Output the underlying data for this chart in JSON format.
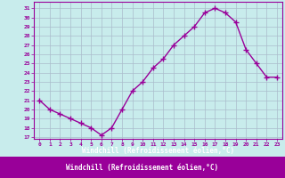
{
  "x": [
    0,
    1,
    2,
    3,
    4,
    5,
    6,
    7,
    8,
    9,
    10,
    11,
    12,
    13,
    14,
    15,
    16,
    17,
    18,
    19,
    20,
    21,
    22,
    23
  ],
  "y": [
    21,
    20,
    19.5,
    19,
    18.5,
    18,
    17.2,
    18,
    20,
    22,
    23,
    24.5,
    25.5,
    27,
    28,
    29,
    30.5,
    31,
    30.5,
    29.5,
    26.5,
    25,
    23.5,
    23.5
  ],
  "line_color": "#990099",
  "marker": "+",
  "marker_size": 4,
  "bg_color": "#c8ecec",
  "grid_color": "#aabccc",
  "xlabel": "Windchill (Refroidissement éolien,°C)",
  "xlabel_color": "#990099",
  "ylabel_ticks": [
    17,
    18,
    19,
    20,
    21,
    22,
    23,
    24,
    25,
    26,
    27,
    28,
    29,
    30,
    31
  ],
  "xtick_labels": [
    "0",
    "1",
    "2",
    "3",
    "4",
    "5",
    "6",
    "7",
    "8",
    "9",
    "10",
    "11",
    "12",
    "13",
    "14",
    "15",
    "16",
    "17",
    "18",
    "19",
    "20",
    "21",
    "22",
    "23"
  ],
  "ylim": [
    16.8,
    31.7
  ],
  "xlim": [
    -0.5,
    23.5
  ],
  "axis_color": "#990099",
  "tick_color": "#990099",
  "linewidth": 1.0,
  "bottom_bar_color": "#990099",
  "bottom_bar_height": 0.18
}
